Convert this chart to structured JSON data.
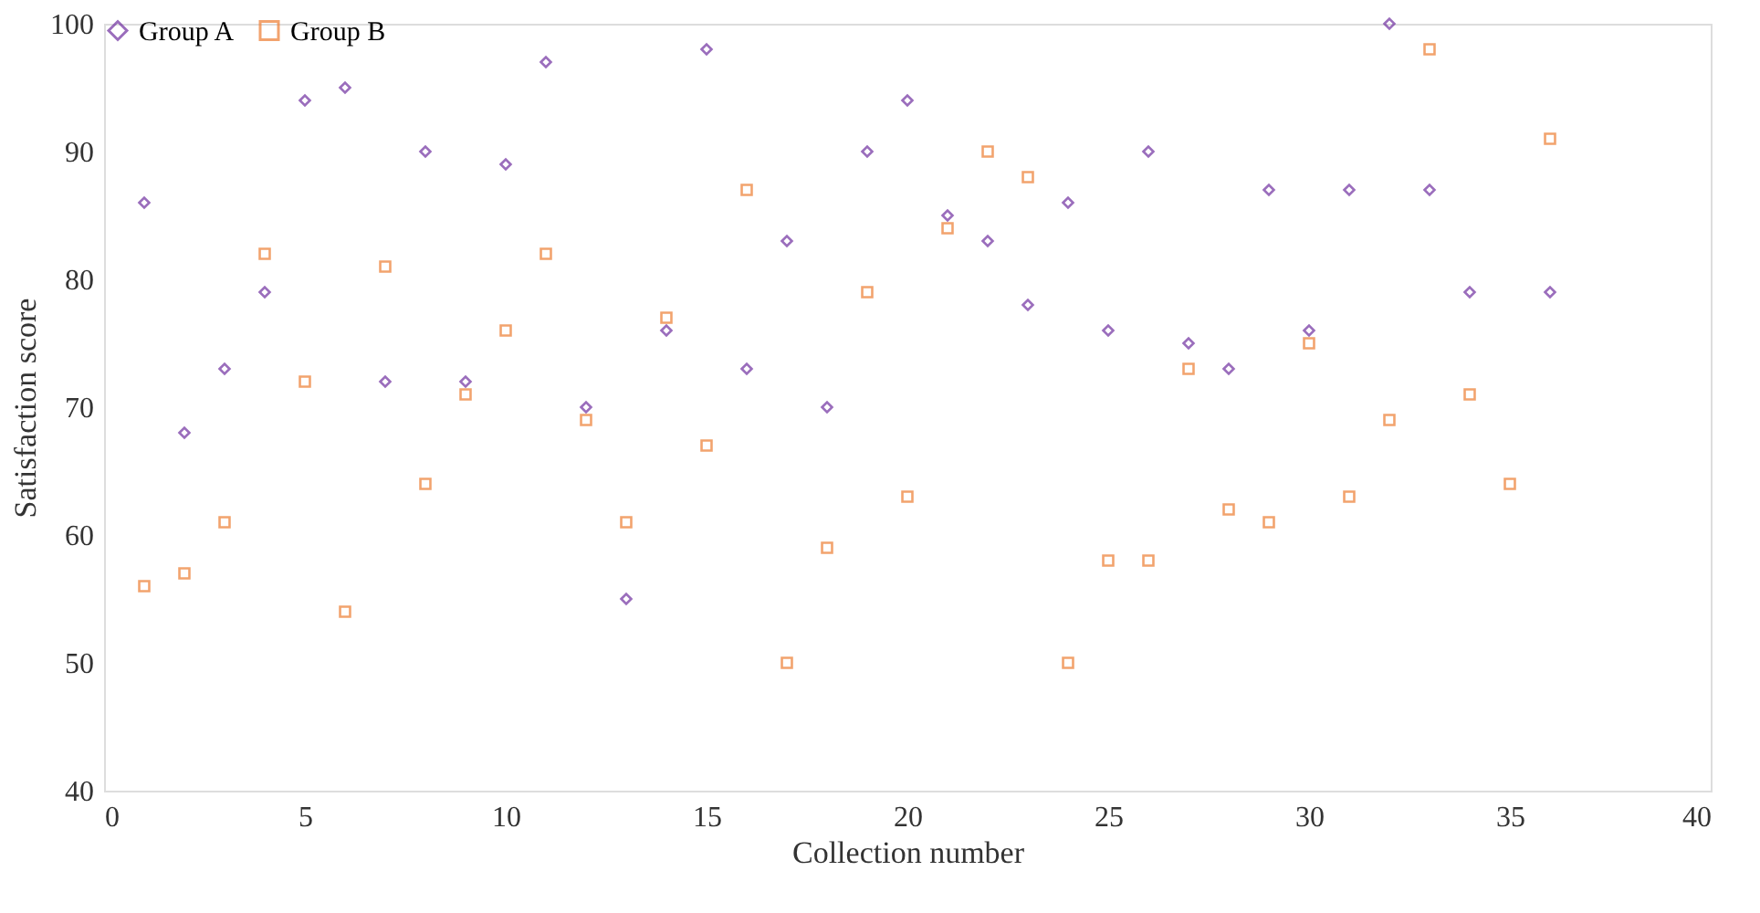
{
  "chart_data": {
    "type": "scatter",
    "xlabel": "Collection number",
    "ylabel": "Satisfaction score",
    "x": [
      1,
      2,
      3,
      4,
      5,
      6,
      7,
      8,
      9,
      10,
      11,
      12,
      13,
      14,
      15,
      16,
      17,
      18,
      19,
      20,
      21,
      22,
      23,
      24,
      25,
      26,
      27,
      28,
      29,
      30,
      31,
      32,
      33,
      34,
      35,
      36
    ],
    "series": [
      {
        "name": "Group A",
        "color": "#7030a0",
        "marker": "diamond",
        "values": [
          86,
          68,
          73,
          79,
          94,
          95,
          72,
          90,
          72,
          89,
          97,
          70,
          55,
          76,
          98,
          73,
          83,
          70,
          90,
          94,
          85,
          83,
          78,
          86,
          76,
          90,
          75,
          73,
          87,
          76,
          87,
          100,
          87,
          79,
          null,
          79
        ]
      },
      {
        "name": "Group B",
        "color": "#ed7d31",
        "marker": "square",
        "values": [
          56,
          57,
          61,
          82,
          72,
          54,
          81,
          64,
          71,
          76,
          82,
          69,
          61,
          77,
          67,
          87,
          50,
          59,
          79,
          63,
          84,
          90,
          88,
          50,
          58,
          58,
          73,
          62,
          61,
          75,
          63,
          69,
          98,
          71,
          64,
          91
        ]
      }
    ],
    "xlim": [
      0,
      40
    ],
    "xticks": [
      0,
      5,
      10,
      15,
      20,
      25,
      30,
      35,
      40
    ],
    "ylim": [
      40,
      100
    ],
    "yticks": [
      40,
      50,
      60,
      70,
      80,
      90,
      100
    ],
    "grid": false,
    "legend": "top"
  }
}
